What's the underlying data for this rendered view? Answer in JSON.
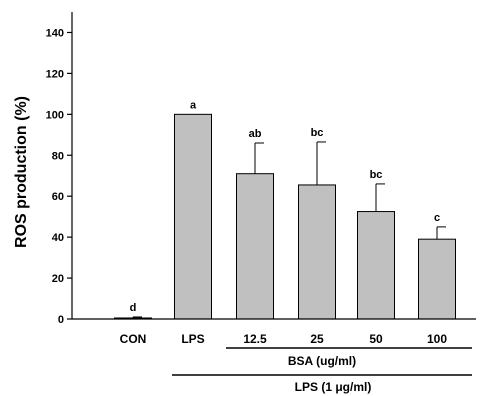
{
  "chart_data": {
    "type": "bar",
    "categories": [
      "CON",
      "LPS",
      "12.5",
      "25",
      "50",
      "100"
    ],
    "values": [
      0.5,
      100,
      71,
      65.5,
      52.5,
      39
    ],
    "errors": [
      0.5,
      0,
      15,
      21,
      13.5,
      6
    ],
    "significance": [
      "d",
      "a",
      "ab",
      "bc",
      "bc",
      "c"
    ],
    "title": "",
    "xlabel": "",
    "ylabel": "ROS production (%)",
    "ylim": [
      0,
      150
    ],
    "yticks": [
      "0",
      "20",
      "40",
      "60",
      "80",
      "100",
      "120",
      "140"
    ],
    "grid": false,
    "bar_color": "#c0c0c0",
    "bracket_labels": {
      "bsa": "BSA (ug/ml)",
      "lps": "LPS (1 μg/ml)"
    }
  }
}
